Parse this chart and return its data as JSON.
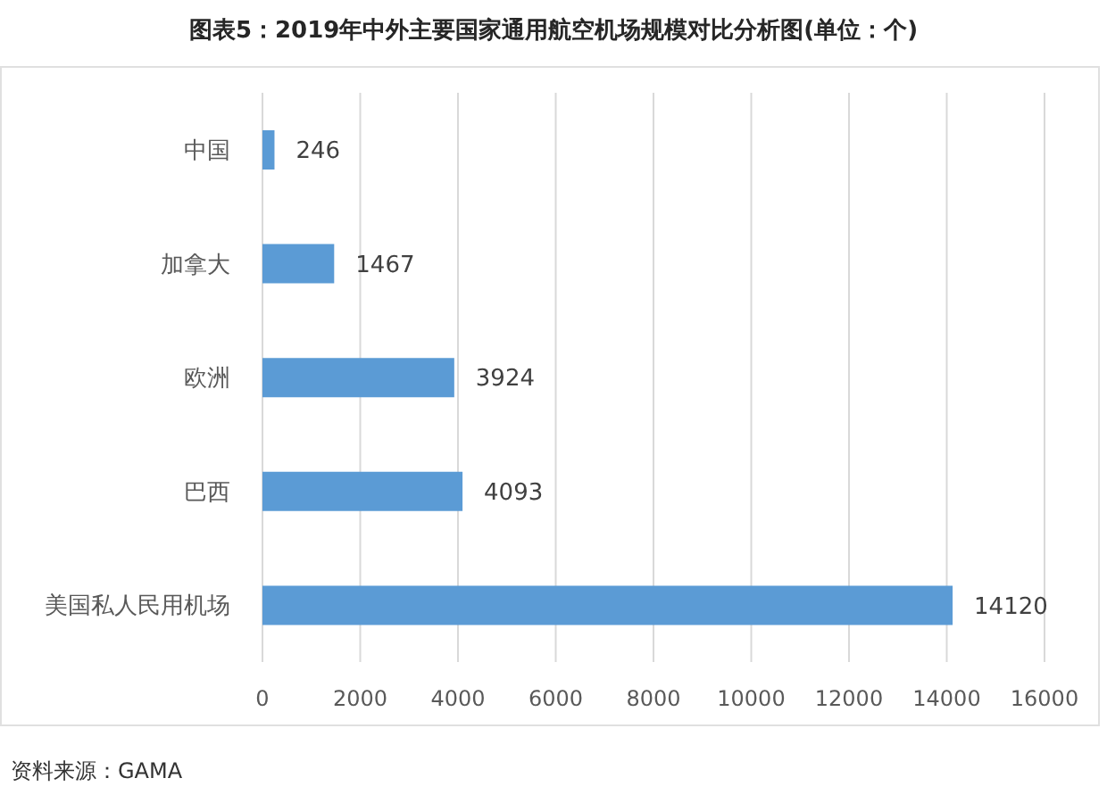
{
  "chart_data": {
    "type": "bar",
    "orientation": "horizontal",
    "title": "图表5：2019年中外主要国家通用航空机场规模对比分析图(单位：个)",
    "categories": [
      "中国",
      "加拿大",
      "欧洲",
      "巴西",
      "美国私人民用机场"
    ],
    "values": [
      246,
      1467,
      3924,
      4093,
      14120
    ],
    "color": "#5b9bd5",
    "xlim": [
      0,
      16000
    ],
    "xticks": [
      0,
      2000,
      4000,
      6000,
      8000,
      10000,
      12000,
      14000,
      16000
    ],
    "grid": "x",
    "data_labels": true,
    "annotations": [
      "资料来源：GAMA"
    ]
  }
}
